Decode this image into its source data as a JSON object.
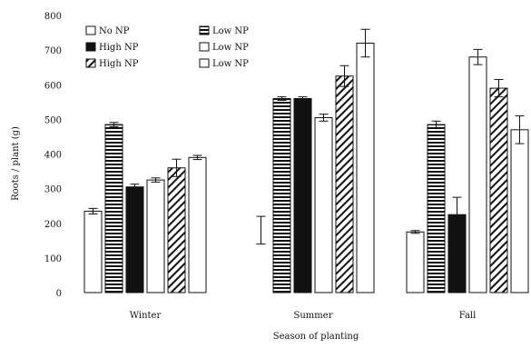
{
  "chart_data": {
    "type": "bar",
    "title": "",
    "xlabel": "Season of planting",
    "ylabel": "Roots / plant (g)",
    "ylim": [
      0,
      800
    ],
    "yticks": [
      0,
      100,
      200,
      300,
      400,
      500,
      600,
      700,
      800
    ],
    "grid": false,
    "legend_position": "top-left",
    "categories": [
      "Winter",
      "Summer",
      "Fall"
    ],
    "series": [
      {
        "name": "No NP",
        "pattern": "white",
        "values": [
          235,
          null,
          175
        ],
        "errors": [
          8,
          40,
          4
        ]
      },
      {
        "name": "Low NP",
        "pattern": "horizontal",
        "values": [
          485,
          560,
          485
        ],
        "errors": [
          6,
          5,
          10
        ]
      },
      {
        "name": "High NP",
        "pattern": "black",
        "values": [
          305,
          560,
          225
        ],
        "errors": [
          8,
          5,
          50
        ]
      },
      {
        "name": "Low NP",
        "pattern": "white",
        "values": [
          325,
          505,
          680
        ],
        "errors": [
          6,
          10,
          22
        ]
      },
      {
        "name": "High NP",
        "pattern": "diagonal",
        "values": [
          360,
          625,
          590
        ],
        "errors": [
          25,
          30,
          25
        ]
      },
      {
        "name": "Low NP",
        "pattern": "white",
        "values": [
          390,
          720,
          470
        ],
        "errors": [
          6,
          40,
          40
        ]
      }
    ]
  }
}
